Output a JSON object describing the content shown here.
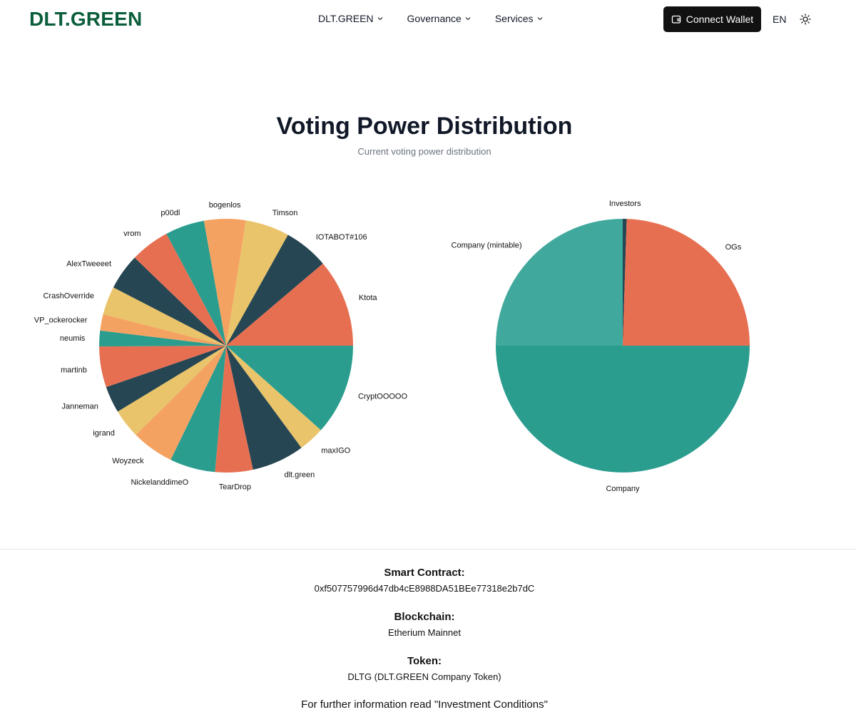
{
  "header": {
    "logo": "DLT.GREEN",
    "nav": [
      {
        "label": "DLT.GREEN"
      },
      {
        "label": "Governance"
      },
      {
        "label": "Services"
      }
    ],
    "wallet_label": "Connect Wallet",
    "lang": "EN"
  },
  "hero": {
    "title": "Voting Power Distribution",
    "subtitle": "Current voting power distribution"
  },
  "colors": {
    "brand": "#0b5e3b",
    "palette": [
      "#2a9d8f",
      "#e76f51",
      "#264653",
      "#e9c46a",
      "#f4a261"
    ]
  },
  "chart_data": [
    {
      "type": "pie",
      "slices": [
        {
          "label": "CryptOOOOO",
          "value": 11.6,
          "color": "#2a9d8f"
        },
        {
          "label": "maxIGO",
          "value": 3.3,
          "color": "#e9c46a"
        },
        {
          "label": "dlt.green",
          "value": 6.7,
          "color": "#264653"
        },
        {
          "label": "TearDrop",
          "value": 4.8,
          "color": "#e76f51"
        },
        {
          "label": "NickelanddimeO",
          "value": 5.8,
          "color": "#2a9d8f"
        },
        {
          "label": "Woyzeck",
          "value": 5.4,
          "color": "#f4a261"
        },
        {
          "label": "igrand",
          "value": 3.7,
          "color": "#e9c46a"
        },
        {
          "label": "Janneman",
          "value": 3.4,
          "color": "#264653"
        },
        {
          "label": "martinb",
          "value": 5.2,
          "color": "#e76f51"
        },
        {
          "label": "neumis",
          "value": 2.0,
          "color": "#2a9d8f"
        },
        {
          "label": "VP_ockerocker",
          "value": 2.1,
          "color": "#f4a261"
        },
        {
          "label": "CrashOverride",
          "value": 3.6,
          "color": "#e9c46a"
        },
        {
          "label": "AlexTweeeet",
          "value": 4.6,
          "color": "#264653"
        },
        {
          "label": "vrom",
          "value": 5.0,
          "color": "#e76f51"
        },
        {
          "label": "p00dl",
          "value": 5.0,
          "color": "#2a9d8f"
        },
        {
          "label": "bogenlos",
          "value": 5.3,
          "color": "#f4a261"
        },
        {
          "label": "Timson",
          "value": 5.6,
          "color": "#e9c46a"
        },
        {
          "label": "IOTABOT#106",
          "value": 5.7,
          "color": "#264653"
        },
        {
          "label": "Ktota",
          "value": 11.2,
          "color": "#e76f51"
        }
      ]
    },
    {
      "type": "pie",
      "slices": [
        {
          "label": "Company",
          "value": 50.0,
          "color": "#2a9d8f"
        },
        {
          "label": "Company (mintable)",
          "value": 25.0,
          "color": "#40a89c"
        },
        {
          "label": "Investors",
          "value": 0.5,
          "color": "#264653"
        },
        {
          "label": "OGs",
          "value": 24.5,
          "color": "#e76f51"
        }
      ]
    }
  ],
  "footer": {
    "contract_label": "Smart Contract:",
    "contract_value": "0xf507757996d47db4cE8988DA51BEe77318e2b7dC",
    "chain_label": "Blockchain:",
    "chain_value": "Etherium Mainnet",
    "token_label": "Token:",
    "token_value": "DLTG (DLT.GREEN Company Token)",
    "further": "For further information read \"Investment Conditions\""
  }
}
